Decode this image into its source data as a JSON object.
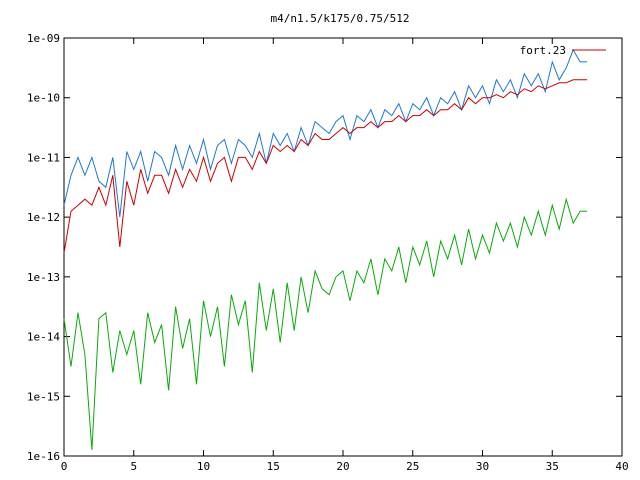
{
  "chart_data": {
    "type": "line",
    "title": "m4/n1.5/k175/0.75/512",
    "xlabel": "",
    "ylabel": "",
    "xlim": [
      0,
      40
    ],
    "xticks": [
      "0",
      "5",
      "10",
      "15",
      "20",
      "25",
      "30",
      "35",
      "40"
    ],
    "ylim_log10": [
      -16,
      -9
    ],
    "yscale": "log",
    "yticks": [
      "1e-16",
      "1e-15",
      "1e-14",
      "1e-13",
      "1e-12",
      "1e-11",
      "1e-10",
      "1e-09"
    ],
    "grid": false,
    "legend_position": "top-right",
    "series": [
      {
        "name": "",
        "color": "#1f77d4",
        "x": [
          0.0,
          0.5,
          1.0,
          1.5,
          2.0,
          2.5,
          3.0,
          3.5,
          4.0,
          4.5,
          5.0,
          5.5,
          6.0,
          6.5,
          7.0,
          7.5,
          8.0,
          8.5,
          9.0,
          9.5,
          10.0,
          10.5,
          11.0,
          11.5,
          12.0,
          12.5,
          13.0,
          13.5,
          14.0,
          14.5,
          15.0,
          15.5,
          16.0,
          16.5,
          17.0,
          17.5,
          18.0,
          18.5,
          19.0,
          19.5,
          20.0,
          20.5,
          21.0,
          21.5,
          22.0,
          22.5,
          23.0,
          23.5,
          24.0,
          24.5,
          25.0,
          25.5,
          26.0,
          26.5,
          27.0,
          27.5,
          28.0,
          28.5,
          29.0,
          29.5,
          30.0,
          30.5,
          31.0,
          31.5,
          32.0,
          32.5,
          33.0,
          33.5,
          34.0,
          34.5,
          35.0,
          35.5,
          36.0,
          36.5,
          37.0,
          37.5
        ],
        "log10y": [
          -11.8,
          -11.3,
          -11.0,
          -11.3,
          -11.0,
          -11.4,
          -11.5,
          -11.0,
          -12.0,
          -10.9,
          -11.2,
          -10.9,
          -11.4,
          -10.9,
          -11.0,
          -11.3,
          -10.8,
          -11.2,
          -10.8,
          -11.1,
          -10.7,
          -11.2,
          -10.8,
          -10.7,
          -11.1,
          -10.7,
          -10.8,
          -11.0,
          -10.6,
          -11.1,
          -10.6,
          -10.8,
          -10.6,
          -10.9,
          -10.5,
          -10.8,
          -10.4,
          -10.5,
          -10.6,
          -10.4,
          -10.3,
          -10.7,
          -10.3,
          -10.4,
          -10.2,
          -10.5,
          -10.2,
          -10.3,
          -10.1,
          -10.4,
          -10.1,
          -10.2,
          -10.0,
          -10.3,
          -10.0,
          -10.1,
          -9.9,
          -10.2,
          -9.8,
          -10.0,
          -9.8,
          -10.1,
          -9.7,
          -9.9,
          -9.7,
          -10.0,
          -9.6,
          -9.8,
          -9.6,
          -9.9,
          -9.4,
          -9.7,
          -9.5,
          -9.2,
          -9.4,
          -9.4
        ]
      },
      {
        "name": "fort.23",
        "color": "#cc0000",
        "x": [
          0.0,
          0.5,
          1.0,
          1.5,
          2.0,
          2.5,
          3.0,
          3.5,
          4.0,
          4.5,
          5.0,
          5.5,
          6.0,
          6.5,
          7.0,
          7.5,
          8.0,
          8.5,
          9.0,
          9.5,
          10.0,
          10.5,
          11.0,
          11.5,
          12.0,
          12.5,
          13.0,
          13.5,
          14.0,
          14.5,
          15.0,
          15.5,
          16.0,
          16.5,
          17.0,
          17.5,
          18.0,
          18.5,
          19.0,
          19.5,
          20.0,
          20.5,
          21.0,
          21.5,
          22.0,
          22.5,
          23.0,
          23.5,
          24.0,
          24.5,
          25.0,
          25.5,
          26.0,
          26.5,
          27.0,
          27.5,
          28.0,
          28.5,
          29.0,
          29.5,
          30.0,
          30.5,
          31.0,
          31.5,
          32.0,
          32.5,
          33.0,
          33.5,
          34.0,
          34.5,
          35.0,
          35.5,
          36.0,
          36.5,
          37.0,
          37.5
        ],
        "log10y": [
          -12.6,
          -11.9,
          -11.8,
          -11.7,
          -11.8,
          -11.5,
          -11.8,
          -11.3,
          -12.5,
          -11.4,
          -11.8,
          -11.2,
          -11.6,
          -11.3,
          -11.3,
          -11.6,
          -11.2,
          -11.5,
          -11.2,
          -11.4,
          -11.0,
          -11.4,
          -11.1,
          -11.0,
          -11.4,
          -11.0,
          -11.0,
          -11.2,
          -10.9,
          -11.1,
          -10.8,
          -10.9,
          -10.8,
          -10.9,
          -10.7,
          -10.8,
          -10.6,
          -10.7,
          -10.7,
          -10.6,
          -10.5,
          -10.6,
          -10.5,
          -10.5,
          -10.4,
          -10.5,
          -10.4,
          -10.4,
          -10.3,
          -10.4,
          -10.3,
          -10.3,
          -10.2,
          -10.3,
          -10.2,
          -10.2,
          -10.1,
          -10.2,
          -10.0,
          -10.1,
          -10.0,
          -10.0,
          -9.95,
          -10.0,
          -9.9,
          -9.95,
          -9.85,
          -9.9,
          -9.8,
          -9.85,
          -9.8,
          -9.75,
          -9.75,
          -9.7,
          -9.7,
          -9.7
        ]
      },
      {
        "name": "",
        "color": "#0aaa0a",
        "x": [
          0.0,
          0.5,
          1.0,
          1.5,
          2.0,
          2.5,
          3.0,
          3.5,
          4.0,
          4.5,
          5.0,
          5.5,
          6.0,
          6.5,
          7.0,
          7.5,
          8.0,
          8.5,
          9.0,
          9.5,
          10.0,
          10.5,
          11.0,
          11.5,
          12.0,
          12.5,
          13.0,
          13.5,
          14.0,
          14.5,
          15.0,
          15.5,
          16.0,
          16.5,
          17.0,
          17.5,
          18.0,
          18.5,
          19.0,
          19.5,
          20.0,
          20.5,
          21.0,
          21.5,
          22.0,
          22.5,
          23.0,
          23.5,
          24.0,
          24.5,
          25.0,
          25.5,
          26.0,
          26.5,
          27.0,
          27.5,
          28.0,
          28.5,
          29.0,
          29.5,
          30.0,
          30.5,
          31.0,
          31.5,
          32.0,
          32.5,
          33.0,
          33.5,
          34.0,
          34.5,
          35.0,
          35.5,
          36.0,
          36.5,
          37.0,
          37.5
        ],
        "log10y": [
          -13.7,
          -14.5,
          -13.6,
          -14.3,
          -15.9,
          -13.7,
          -13.6,
          -14.6,
          -13.9,
          -14.3,
          -13.9,
          -14.8,
          -13.6,
          -14.1,
          -13.8,
          -14.9,
          -13.5,
          -14.2,
          -13.7,
          -14.8,
          -13.4,
          -14.0,
          -13.5,
          -14.5,
          -13.3,
          -13.8,
          -13.4,
          -14.6,
          -13.1,
          -13.9,
          -13.2,
          -14.1,
          -13.1,
          -13.9,
          -13.0,
          -13.6,
          -12.9,
          -13.2,
          -13.3,
          -13.0,
          -12.9,
          -13.4,
          -12.9,
          -13.1,
          -12.7,
          -13.3,
          -12.7,
          -12.9,
          -12.5,
          -13.1,
          -12.5,
          -12.8,
          -12.4,
          -13.0,
          -12.4,
          -12.7,
          -12.3,
          -12.8,
          -12.2,
          -12.7,
          -12.3,
          -12.6,
          -12.1,
          -12.4,
          -12.1,
          -12.5,
          -12.0,
          -12.3,
          -11.9,
          -12.3,
          -11.8,
          -12.2,
          -11.7,
          -12.1,
          -11.9,
          -11.9
        ]
      }
    ]
  }
}
